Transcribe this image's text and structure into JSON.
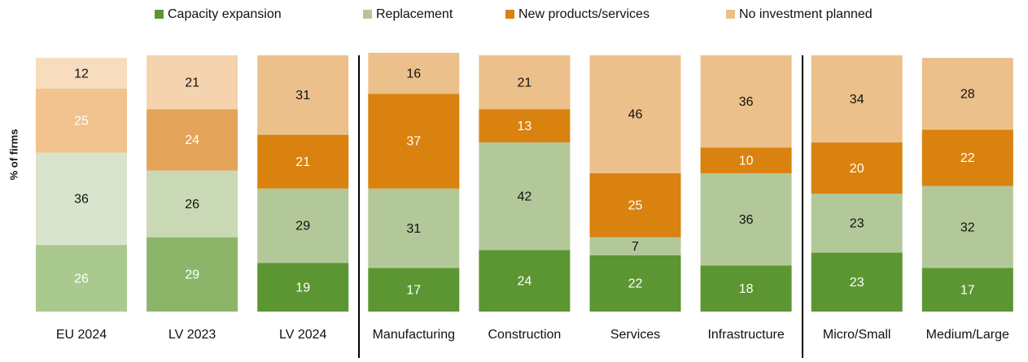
{
  "chart_data": {
    "type": "stacked_bar",
    "y_label": "% of firms",
    "categories": [
      "EU 2024",
      "LV 2023",
      "LV 2024",
      "Manufacturing",
      "Construction",
      "Services",
      "Infrastructure",
      "Micro/Small",
      "Medium/Large"
    ],
    "ylim": [
      0,
      100
    ],
    "series": [
      {
        "name": "Capacity expansion",
        "color": "#5b9632",
        "label_color": "#ffffff",
        "colors": [
          "#a9c98f",
          "#8db56a",
          "#5b9632",
          "#5b9632",
          "#5b9632",
          "#5b9632",
          "#5b9632",
          "#5b9632",
          "#5b9632"
        ],
        "values": [
          26,
          29,
          19,
          17,
          24,
          22,
          18,
          23,
          17
        ]
      },
      {
        "name": "Replacement",
        "color": "#b3c899",
        "label_color": "#111111",
        "colors": [
          "#d9e4cc",
          "#c9d8b5",
          "#b3c899",
          "#b3c899",
          "#b3c899",
          "#b3c899",
          "#b3c899",
          "#b3c899",
          "#b3c899"
        ],
        "values": [
          36,
          26,
          29,
          31,
          42,
          7,
          36,
          23,
          32
        ]
      },
      {
        "name": "New products/services",
        "color": "#d9820f",
        "label_color": "#ffffff",
        "colors": [
          "#f2c28f",
          "#e3a45a",
          "#d9820f",
          "#d9820f",
          "#d9820f",
          "#d9820f",
          "#d9820f",
          "#d9820f",
          "#d9820f"
        ],
        "values": [
          25,
          24,
          21,
          37,
          13,
          25,
          10,
          20,
          22
        ]
      },
      {
        "name": "No investment planned",
        "color": "#ecc08a",
        "label_color": "#111111",
        "colors": [
          "#f7dcbe",
          "#f5d3ae",
          "#ecc08a",
          "#ecc08a",
          "#ecc08a",
          "#ecc08a",
          "#ecc08a",
          "#ecc08a",
          "#ecc08a"
        ],
        "values": [
          12,
          21,
          31,
          16,
          21,
          46,
          36,
          34,
          28
        ]
      }
    ]
  }
}
